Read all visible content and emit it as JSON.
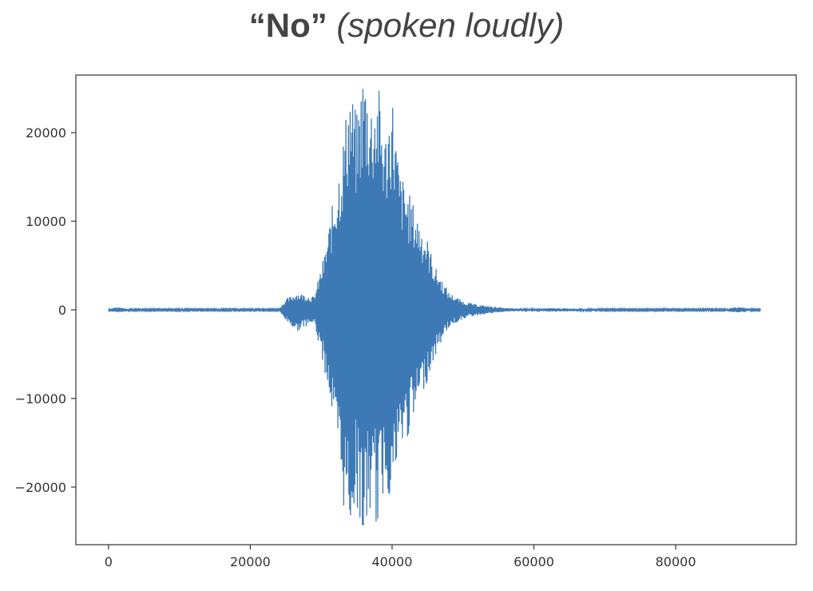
{
  "title": {
    "bold_part": "“No”",
    "italic_part": "(spoken loudly)"
  },
  "colors": {
    "waveform": "#3d7ab5",
    "axes": "#333333",
    "title": "#444444"
  },
  "chart_data": {
    "type": "line",
    "title": "“No” (spoken loudly)",
    "xlabel": "",
    "ylabel": "",
    "xlim": [
      -4600,
      97000
    ],
    "ylim": [
      -26500,
      26500
    ],
    "xticks": [
      0,
      20000,
      40000,
      60000,
      80000
    ],
    "yticks": [
      -20000,
      -10000,
      0,
      10000,
      20000
    ],
    "xtick_labels": [
      "0",
      "20000",
      "40000",
      "60000",
      "80000"
    ],
    "ytick_labels": [
      "−20000",
      "−10000",
      "0",
      "10000",
      "20000"
    ],
    "grid": false,
    "legend": "none",
    "n_samples": 92000,
    "series": [
      {
        "envelope_x": [
          0,
          1000,
          2000,
          3000,
          24000,
          25000,
          26500,
          27500,
          29000,
          30500,
          31000,
          32000,
          33000,
          34000,
          35000,
          36000,
          37000,
          38000,
          39000,
          40000,
          41000,
          42000,
          43000,
          44000,
          45000,
          46000,
          47000,
          48000,
          49000,
          50000,
          51000,
          52000,
          53000,
          54000,
          55000,
          56000,
          58000,
          60000,
          62000,
          70000,
          87000,
          88000,
          89500,
          90500,
          92000
        ],
        "envelope_max": [
          100,
          300,
          250,
          100,
          100,
          1200,
          2000,
          1800,
          1500,
          6500,
          9000,
          14000,
          19000,
          26000,
          22000,
          28000,
          24000,
          26000,
          20000,
          25000,
          16000,
          14000,
          12000,
          10000,
          8000,
          5000,
          3500,
          2000,
          1500,
          1000,
          800,
          600,
          500,
          400,
          300,
          200,
          150,
          100,
          200,
          100,
          100,
          300,
          300,
          100,
          80
        ],
        "envelope_min": [
          -100,
          -300,
          -250,
          -100,
          -100,
          -1200,
          -2500,
          -2000,
          -1500,
          -7000,
          -9000,
          -15000,
          -22000,
          -25000,
          -22000,
          -27000,
          -23000,
          -25000,
          -20000,
          -22000,
          -17000,
          -15000,
          -13000,
          -10000,
          -8000,
          -5500,
          -3500,
          -2000,
          -1500,
          -1000,
          -800,
          -600,
          -500,
          -400,
          -300,
          -200,
          -150,
          -100,
          -200,
          -100,
          -100,
          -300,
          -300,
          -100,
          -80
        ]
      }
    ]
  }
}
